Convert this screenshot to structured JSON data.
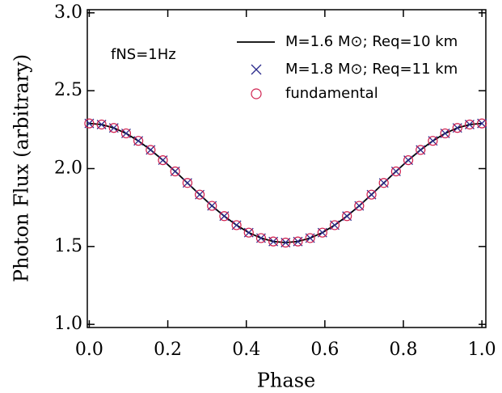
{
  "chart_data": {
    "type": "line",
    "xlabel": "Phase",
    "ylabel": "Photon Flux (arbitrary)",
    "annotation": "fNS=1Hz",
    "xlim": [
      -0.005,
      1.01
    ],
    "ylim": [
      0.98,
      3.02
    ],
    "xticks": [
      {
        "value": 0,
        "label": "0.0"
      },
      {
        "value": 0.2,
        "label": "0.2"
      },
      {
        "value": 0.4,
        "label": "0.4"
      },
      {
        "value": 0.6,
        "label": "0.6"
      },
      {
        "value": 0.8,
        "label": "0.8"
      },
      {
        "value": 1,
        "label": "1.0"
      }
    ],
    "yticks": [
      {
        "value": 1,
        "label": "1.0"
      },
      1.5,
      {
        "value": 2,
        "label": "2.0"
      },
      2.5,
      {
        "value": 3,
        "label": "3.0"
      }
    ],
    "legend": "upper right",
    "x": [
      0,
      0.03125,
      0.0625,
      0.09375,
      0.125,
      0.15625,
      0.1875,
      0.21875,
      0.25,
      0.28125,
      0.3125,
      0.34375,
      0.375,
      0.40625,
      0.4375,
      0.46875,
      0.5,
      0.53125,
      0.5625,
      0.59375,
      0.625,
      0.65625,
      0.6875,
      0.71875,
      0.75,
      0.78125,
      0.8125,
      0.84375,
      0.875,
      0.90625,
      0.9375,
      0.96875,
      1
    ],
    "series": [
      {
        "name": "M=1.6 M⊙; Req=10 km",
        "marker": "line",
        "color": "#000000",
        "values": [
          2.29,
          2.283,
          2.261,
          2.226,
          2.178,
          2.12,
          2.054,
          1.982,
          1.908,
          1.833,
          1.761,
          1.695,
          1.637,
          1.589,
          1.554,
          1.532,
          1.525,
          1.532,
          1.554,
          1.589,
          1.637,
          1.695,
          1.761,
          1.833,
          1.908,
          1.982,
          2.054,
          2.12,
          2.178,
          2.226,
          2.261,
          2.283,
          2.29
        ]
      },
      {
        "name": "M=1.8 M⊙; Req=11 km",
        "marker": "cross",
        "color": "#2a2a8c",
        "values": [
          2.29,
          2.283,
          2.261,
          2.226,
          2.178,
          2.12,
          2.054,
          1.982,
          1.908,
          1.833,
          1.761,
          1.695,
          1.637,
          1.589,
          1.554,
          1.532,
          1.525,
          1.532,
          1.554,
          1.589,
          1.637,
          1.695,
          1.761,
          1.833,
          1.908,
          1.982,
          2.054,
          2.12,
          2.178,
          2.226,
          2.261,
          2.283,
          2.29
        ]
      },
      {
        "name": "fundamental",
        "marker": "circle",
        "color": "#d0214f",
        "values": [
          2.29,
          2.283,
          2.261,
          2.226,
          2.178,
          2.12,
          2.054,
          1.982,
          1.908,
          1.833,
          1.761,
          1.695,
          1.637,
          1.589,
          1.554,
          1.532,
          1.525,
          1.532,
          1.554,
          1.589,
          1.637,
          1.695,
          1.761,
          1.833,
          1.908,
          1.982,
          2.054,
          2.12,
          2.178,
          2.226,
          2.261,
          2.283,
          2.29
        ]
      }
    ]
  }
}
